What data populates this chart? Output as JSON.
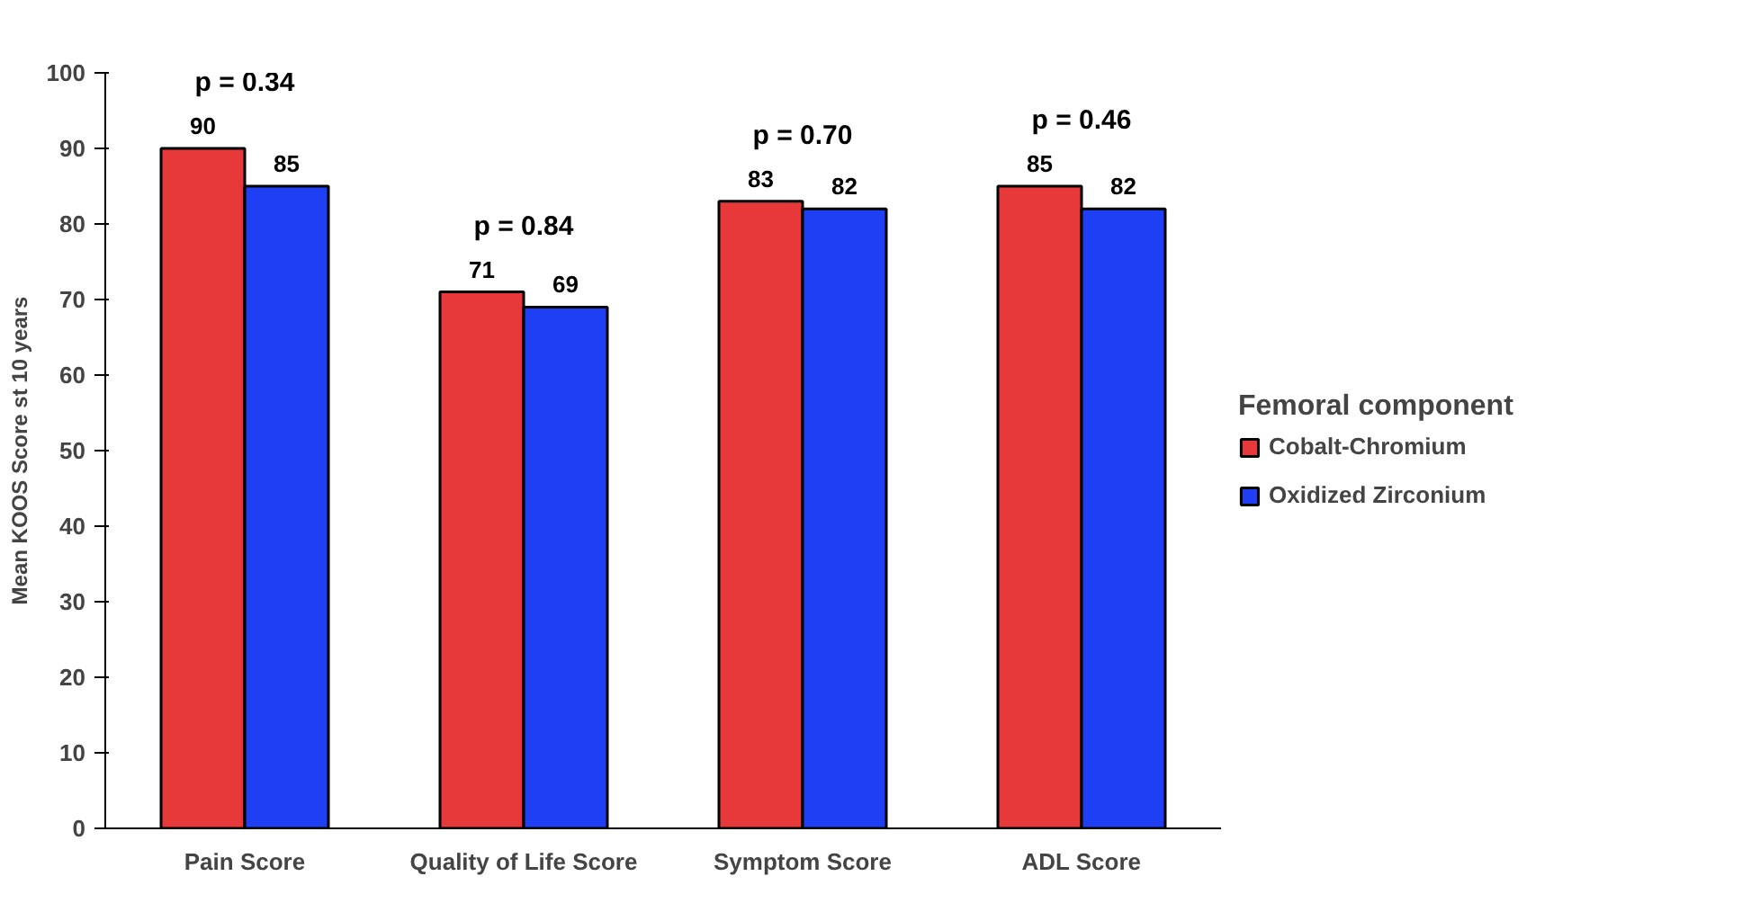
{
  "chart_data": {
    "type": "bar",
    "ylabel": "Mean KOOS Score st 10 years",
    "legend_title": "Femoral component",
    "categories": [
      "Pain Score",
      "Quality of Life Score",
      "Symptom Score",
      "ADL Score"
    ],
    "series": [
      {
        "name": "Cobalt-Chromium",
        "color": "#e8393a",
        "values": [
          90,
          71,
          83,
          85
        ]
      },
      {
        "name": "Oxidized Zirconium",
        "color": "#1f3ff5",
        "values": [
          85,
          69,
          82,
          82
        ]
      }
    ],
    "ylim": [
      0,
      100
    ],
    "yticks": [
      0,
      10,
      20,
      30,
      40,
      50,
      60,
      70,
      80,
      90,
      100
    ],
    "grid": false,
    "legend": "right",
    "data_labels": true,
    "annotations": [
      "p = 0.34",
      "p = 0.84",
      "p = 0.70",
      "p = 0.46"
    ]
  }
}
